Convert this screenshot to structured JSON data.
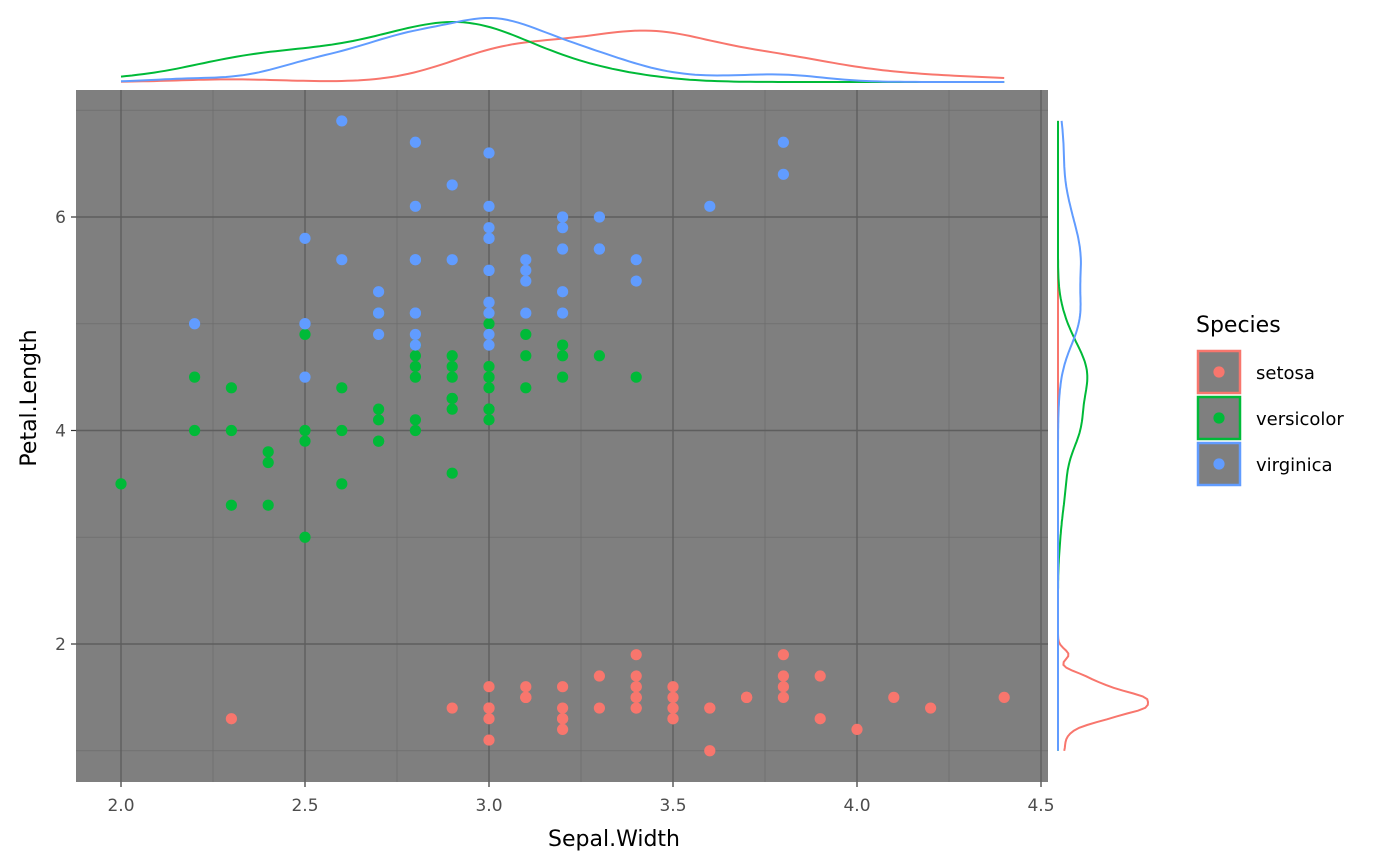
{
  "chart_data": {
    "type": "scatter",
    "xlabel": "Sepal.Width",
    "ylabel": "Petal.Length",
    "xlim": [
      1.88,
      4.52
    ],
    "ylim": [
      0.69,
      7.16
    ],
    "x_ticks": [
      "2.0",
      "2.5",
      "3.0",
      "3.5",
      "4.0",
      "4.5"
    ],
    "y_ticks": [
      "2",
      "4",
      "6"
    ],
    "grid": true,
    "panel_color": "#7f7f7f",
    "legend": {
      "title": "Species",
      "position": "right"
    },
    "marginal_density": {
      "top": "Sepal.Width",
      "right": "Petal.Length"
    },
    "series": [
      {
        "name": "setosa",
        "color": "#F8766D",
        "points": [
          [
            3.5,
            1.4
          ],
          [
            3.0,
            1.4
          ],
          [
            3.2,
            1.3
          ],
          [
            3.1,
            1.5
          ],
          [
            3.6,
            1.4
          ],
          [
            3.9,
            1.7
          ],
          [
            3.4,
            1.4
          ],
          [
            3.4,
            1.5
          ],
          [
            2.9,
            1.4
          ],
          [
            3.1,
            1.5
          ],
          [
            3.7,
            1.5
          ],
          [
            3.4,
            1.6
          ],
          [
            3.0,
            1.4
          ],
          [
            3.0,
            1.1
          ],
          [
            4.0,
            1.2
          ],
          [
            4.4,
            1.5
          ],
          [
            3.9,
            1.3
          ],
          [
            3.5,
            1.4
          ],
          [
            3.8,
            1.7
          ],
          [
            3.8,
            1.5
          ],
          [
            3.4,
            1.7
          ],
          [
            3.7,
            1.5
          ],
          [
            3.6,
            1.0
          ],
          [
            3.3,
            1.7
          ],
          [
            3.4,
            1.9
          ],
          [
            3.0,
            1.6
          ],
          [
            3.4,
            1.6
          ],
          [
            3.5,
            1.5
          ],
          [
            3.4,
            1.4
          ],
          [
            3.2,
            1.6
          ],
          [
            3.1,
            1.6
          ],
          [
            3.4,
            1.5
          ],
          [
            4.1,
            1.5
          ],
          [
            4.2,
            1.4
          ],
          [
            3.1,
            1.5
          ],
          [
            3.2,
            1.2
          ],
          [
            3.5,
            1.3
          ],
          [
            3.6,
            1.4
          ],
          [
            3.0,
            1.3
          ],
          [
            3.4,
            1.5
          ],
          [
            3.5,
            1.3
          ],
          [
            2.3,
            1.3
          ],
          [
            3.2,
            1.3
          ],
          [
            3.5,
            1.6
          ],
          [
            3.8,
            1.9
          ],
          [
            3.0,
            1.4
          ],
          [
            3.8,
            1.6
          ],
          [
            3.2,
            1.4
          ],
          [
            3.7,
            1.5
          ],
          [
            3.3,
            1.4
          ]
        ]
      },
      {
        "name": "versicolor",
        "color": "#00BA38",
        "points": [
          [
            3.2,
            4.7
          ],
          [
            3.2,
            4.5
          ],
          [
            3.1,
            4.9
          ],
          [
            2.3,
            4.0
          ],
          [
            2.8,
            4.6
          ],
          [
            2.8,
            4.5
          ],
          [
            3.3,
            4.7
          ],
          [
            2.4,
            3.3
          ],
          [
            2.9,
            4.6
          ],
          [
            2.7,
            3.9
          ],
          [
            2.0,
            3.5
          ],
          [
            3.0,
            4.2
          ],
          [
            2.2,
            4.0
          ],
          [
            2.9,
            4.7
          ],
          [
            2.9,
            3.6
          ],
          [
            3.1,
            4.4
          ],
          [
            3.0,
            4.5
          ],
          [
            2.7,
            4.1
          ],
          [
            2.2,
            4.5
          ],
          [
            2.5,
            3.9
          ],
          [
            3.2,
            4.8
          ],
          [
            2.8,
            4.0
          ],
          [
            2.5,
            4.9
          ],
          [
            2.8,
            4.7
          ],
          [
            2.9,
            4.3
          ],
          [
            3.0,
            4.4
          ],
          [
            2.8,
            4.8
          ],
          [
            3.0,
            5.0
          ],
          [
            2.9,
            4.5
          ],
          [
            2.6,
            3.5
          ],
          [
            2.4,
            3.8
          ],
          [
            2.4,
            3.7
          ],
          [
            2.7,
            3.9
          ],
          [
            2.7,
            5.1
          ],
          [
            3.0,
            4.5
          ],
          [
            3.4,
            4.5
          ],
          [
            3.1,
            4.7
          ],
          [
            2.3,
            4.4
          ],
          [
            3.0,
            4.1
          ],
          [
            2.5,
            4.0
          ],
          [
            2.6,
            4.4
          ],
          [
            3.0,
            4.6
          ],
          [
            2.6,
            4.0
          ],
          [
            2.3,
            3.3
          ],
          [
            2.7,
            4.2
          ],
          [
            3.0,
            4.2
          ],
          [
            2.9,
            4.2
          ],
          [
            2.9,
            4.3
          ],
          [
            2.5,
            3.0
          ],
          [
            2.8,
            4.1
          ]
        ]
      },
      {
        "name": "virginica",
        "color": "#619CFF",
        "points": [
          [
            3.3,
            6.0
          ],
          [
            2.7,
            5.1
          ],
          [
            3.0,
            5.9
          ],
          [
            2.9,
            5.6
          ],
          [
            3.0,
            5.8
          ],
          [
            3.0,
            6.6
          ],
          [
            2.5,
            4.5
          ],
          [
            2.9,
            6.3
          ],
          [
            2.5,
            5.8
          ],
          [
            3.6,
            6.1
          ],
          [
            3.2,
            5.1
          ],
          [
            2.7,
            5.3
          ],
          [
            3.0,
            5.5
          ],
          [
            2.5,
            5.0
          ],
          [
            2.8,
            5.1
          ],
          [
            3.2,
            5.3
          ],
          [
            3.0,
            5.5
          ],
          [
            3.8,
            6.7
          ],
          [
            2.6,
            6.9
          ],
          [
            2.2,
            5.0
          ],
          [
            3.2,
            5.7
          ],
          [
            2.8,
            4.9
          ],
          [
            2.8,
            6.7
          ],
          [
            2.7,
            4.9
          ],
          [
            3.3,
            5.7
          ],
          [
            3.2,
            6.0
          ],
          [
            2.8,
            4.8
          ],
          [
            3.0,
            4.9
          ],
          [
            2.8,
            5.6
          ],
          [
            3.0,
            5.8
          ],
          [
            2.8,
            6.1
          ],
          [
            3.8,
            6.4
          ],
          [
            2.8,
            5.6
          ],
          [
            2.8,
            5.1
          ],
          [
            2.6,
            5.6
          ],
          [
            3.0,
            6.1
          ],
          [
            3.4,
            5.6
          ],
          [
            3.1,
            5.5
          ],
          [
            3.0,
            4.8
          ],
          [
            3.1,
            5.4
          ],
          [
            3.1,
            5.6
          ],
          [
            3.1,
            5.1
          ],
          [
            2.7,
            5.1
          ],
          [
            3.2,
            5.9
          ],
          [
            3.3,
            5.7
          ],
          [
            3.0,
            5.2
          ],
          [
            2.5,
            5.0
          ],
          [
            3.0,
            5.2
          ],
          [
            3.4,
            5.4
          ],
          [
            3.0,
            5.1
          ]
        ]
      }
    ]
  }
}
